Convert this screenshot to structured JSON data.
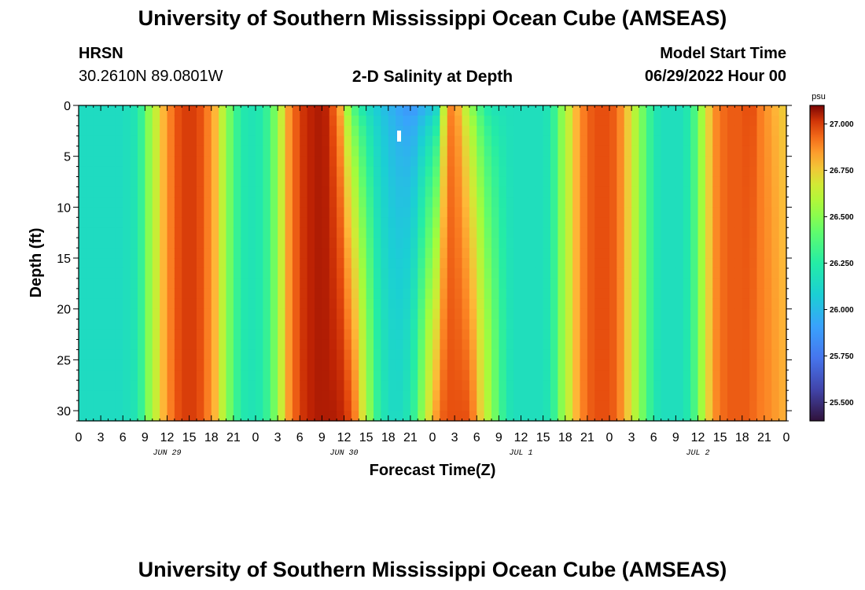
{
  "title": "University of Southern Mississippi Ocean Cube (AMSEAS)",
  "footer_title": "University of Southern Mississippi Ocean Cube (AMSEAS)",
  "station": {
    "name": "HRSN",
    "coords": "30.2610N  89.0801W"
  },
  "model": {
    "label": "Model Start Time",
    "value": "06/29/2022 Hour 00"
  },
  "chart_data": {
    "type": "heatmap",
    "title": "2-D Salinity at Depth",
    "xlabel": "Forecast Time(Z)",
    "ylabel": "Depth (ft)",
    "x_range_hours": [
      0,
      96
    ],
    "ylim": [
      0,
      31
    ],
    "y_reversed": true,
    "x_tick_labels": [
      "0",
      "3",
      "6",
      "9",
      "12",
      "15",
      "18",
      "21",
      "0",
      "3",
      "6",
      "9",
      "12",
      "15",
      "18",
      "21",
      "0",
      "3",
      "6",
      "9",
      "12",
      "15",
      "18",
      "21",
      "0",
      "3",
      "6",
      "9",
      "12",
      "15",
      "18",
      "21",
      "0"
    ],
    "y_ticks": [
      0,
      5,
      10,
      15,
      20,
      25,
      30
    ],
    "y_tick_labels": [
      "0",
      "5",
      "10",
      "15",
      "20",
      "25",
      "30"
    ],
    "date_labels": [
      {
        "label": "JUN 29",
        "hour": 12
      },
      {
        "label": "JUN 30",
        "hour": 36
      },
      {
        "label": "JUL 1",
        "hour": 60
      },
      {
        "label": "JUL 2",
        "hour": 84
      }
    ],
    "colorbar": {
      "unit": "psu",
      "min": 25.4,
      "max": 27.1,
      "ticks": [
        27.0,
        26.75,
        26.5,
        26.25,
        26.0,
        25.75,
        25.5
      ],
      "tick_labels": [
        "27.000",
        "26.750",
        "26.500",
        "26.250",
        "26.000",
        "25.750",
        "25.500"
      ]
    },
    "surface_salinity_hourly": [
      26.15,
      26.15,
      26.15,
      26.15,
      26.15,
      26.15,
      26.17,
      26.2,
      26.3,
      26.5,
      26.65,
      26.8,
      26.9,
      26.97,
      27.0,
      27.0,
      26.97,
      26.9,
      26.8,
      26.62,
      26.45,
      26.3,
      26.22,
      26.2,
      26.22,
      26.3,
      26.45,
      26.65,
      26.85,
      26.95,
      27.02,
      27.05,
      27.06,
      27.05,
      26.95,
      26.8,
      26.5,
      26.3,
      26.18,
      26.1,
      26.05,
      26.0,
      25.95,
      25.9,
      25.85,
      25.85,
      25.9,
      25.95,
      26.05,
      26.6,
      26.88,
      26.8,
      26.6,
      26.45,
      26.3,
      26.2,
      26.17,
      26.17,
      26.17,
      26.17,
      26.17,
      26.17,
      26.17,
      26.2,
      26.3,
      26.5,
      26.65,
      26.8,
      26.9,
      26.95,
      26.97,
      26.97,
      26.95,
      26.88,
      26.75,
      26.6,
      26.45,
      26.3,
      26.2,
      26.17,
      26.17,
      26.17,
      26.22,
      26.35,
      26.55,
      26.75,
      26.88,
      26.93,
      26.95,
      26.95,
      26.97,
      26.97,
      26.9,
      26.85,
      26.8,
      26.75,
      26.7
    ],
    "bottom_salinity_hourly": [
      26.15,
      26.15,
      26.15,
      26.15,
      26.15,
      26.15,
      26.17,
      26.2,
      26.3,
      26.5,
      26.65,
      26.8,
      26.9,
      26.97,
      27.0,
      27.0,
      26.97,
      26.9,
      26.8,
      26.62,
      26.45,
      26.3,
      26.22,
      26.2,
      26.22,
      26.3,
      26.45,
      26.65,
      26.85,
      26.95,
      27.02,
      27.05,
      27.06,
      27.06,
      27.06,
      27.05,
      27.0,
      26.9,
      26.7,
      26.5,
      26.3,
      26.2,
      26.15,
      26.15,
      26.2,
      26.3,
      26.5,
      26.7,
      26.85,
      26.95,
      26.97,
      26.97,
      26.97,
      26.9,
      26.75,
      26.6,
      26.45,
      26.3,
      26.2,
      26.17,
      26.17,
      26.17,
      26.17,
      26.2,
      26.3,
      26.5,
      26.65,
      26.8,
      26.9,
      26.95,
      26.97,
      26.97,
      26.95,
      26.88,
      26.75,
      26.6,
      26.45,
      26.3,
      26.2,
      26.17,
      26.17,
      26.17,
      26.22,
      26.35,
      26.55,
      26.75,
      26.88,
      26.93,
      26.95,
      26.95,
      26.95,
      26.93,
      26.9,
      26.88,
      26.85,
      26.82,
      26.8
    ]
  }
}
